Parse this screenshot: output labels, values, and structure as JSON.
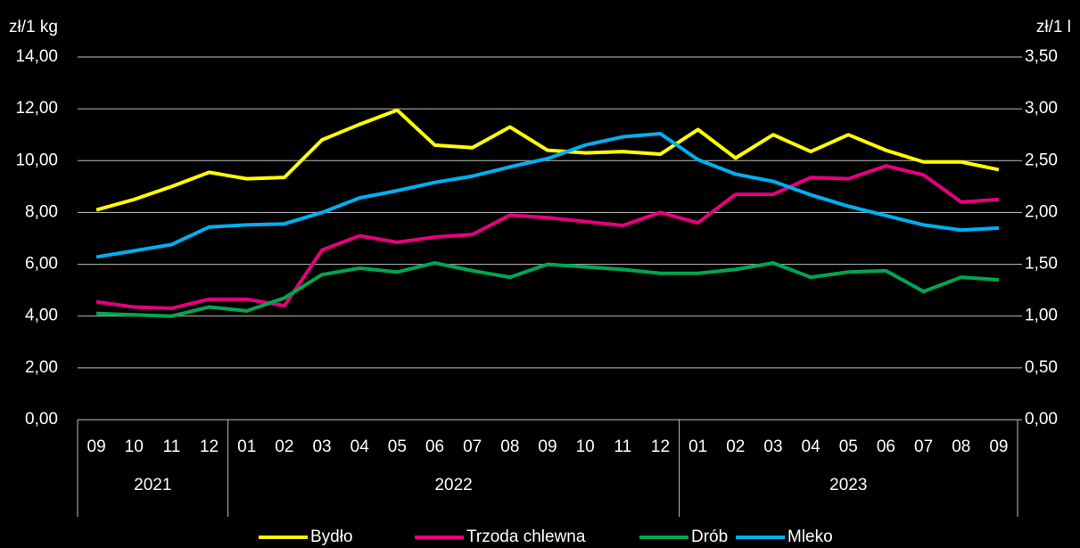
{
  "chart_data": {
    "type": "line",
    "y_label": "zł/1 kg",
    "y2_label": "zł/1 l",
    "category_groups": [
      {
        "label": "2021",
        "categories": [
          "09",
          "10",
          "11",
          "12"
        ]
      },
      {
        "label": "2022",
        "categories": [
          "01",
          "02",
          "03",
          "04",
          "05",
          "06",
          "07",
          "08",
          "09",
          "10",
          "11",
          "12"
        ]
      },
      {
        "label": "2023",
        "categories": [
          "01",
          "02",
          "03",
          "04",
          "05",
          "06",
          "07",
          "08",
          "09"
        ]
      }
    ],
    "ylim": [
      0,
      14
    ],
    "yticks": [
      {
        "value": 0,
        "label": "0,00"
      },
      {
        "value": 2,
        "label": "2,00"
      },
      {
        "value": 4,
        "label": "4,00"
      },
      {
        "value": 6,
        "label": "6,00"
      },
      {
        "value": 8,
        "label": "8,00"
      },
      {
        "value": 10,
        "label": "10,00"
      },
      {
        "value": 12,
        "label": "12,00"
      },
      {
        "value": 14,
        "label": "14,00"
      }
    ],
    "y2lim": [
      0,
      3.5
    ],
    "y2ticks": [
      {
        "value": 0,
        "label": "0,00"
      },
      {
        "value": 0.5,
        "label": "0,50"
      },
      {
        "value": 1,
        "label": "1,00"
      },
      {
        "value": 1.5,
        "label": "1,50"
      },
      {
        "value": 2,
        "label": "2,00"
      },
      {
        "value": 2.5,
        "label": "2,50"
      },
      {
        "value": 3,
        "label": "3,00"
      },
      {
        "value": 3.5,
        "label": "3,50"
      }
    ],
    "grid": true,
    "legend": "bottom",
    "series": [
      {
        "name": "Bydło",
        "color": "#ffff00",
        "values": [
          8.1,
          8.5,
          9.0,
          9.55,
          9.3,
          9.35,
          10.8,
          11.4,
          11.95,
          10.6,
          10.5,
          11.3,
          10.4,
          10.3,
          10.35,
          10.25,
          11.2,
          10.1,
          11.0,
          10.35,
          11.0,
          10.4,
          9.95,
          9.95,
          9.65
        ]
      },
      {
        "name": "Trzoda chlewna",
        "color": "#e6007e",
        "values": [
          4.55,
          4.35,
          4.3,
          4.65,
          4.65,
          4.4,
          6.55,
          7.1,
          6.85,
          7.05,
          7.15,
          7.9,
          7.8,
          7.65,
          7.5,
          8.0,
          7.6,
          8.7,
          8.7,
          9.35,
          9.3,
          9.8,
          9.45,
          8.4,
          8.5
        ]
      },
      {
        "name": "Drób",
        "color": "#00a651",
        "values": [
          4.1,
          4.05,
          4.0,
          4.35,
          4.2,
          4.7,
          5.6,
          5.85,
          5.7,
          6.05,
          5.75,
          5.5,
          6.0,
          5.9,
          5.8,
          5.65,
          5.65,
          5.8,
          6.05,
          5.5,
          5.7,
          5.75,
          4.95,
          5.5,
          5.4
        ]
      },
      {
        "name": "Mleko",
        "color": "#00b0f0",
        "axis": "y2",
        "values": [
          1.57,
          1.63,
          1.69,
          1.86,
          1.88,
          1.89,
          2.0,
          2.14,
          2.21,
          2.29,
          2.35,
          2.44,
          2.52,
          2.65,
          2.73,
          2.76,
          2.51,
          2.37,
          2.3,
          2.17,
          2.06,
          1.97,
          1.88,
          1.83,
          1.85
        ]
      }
    ]
  }
}
